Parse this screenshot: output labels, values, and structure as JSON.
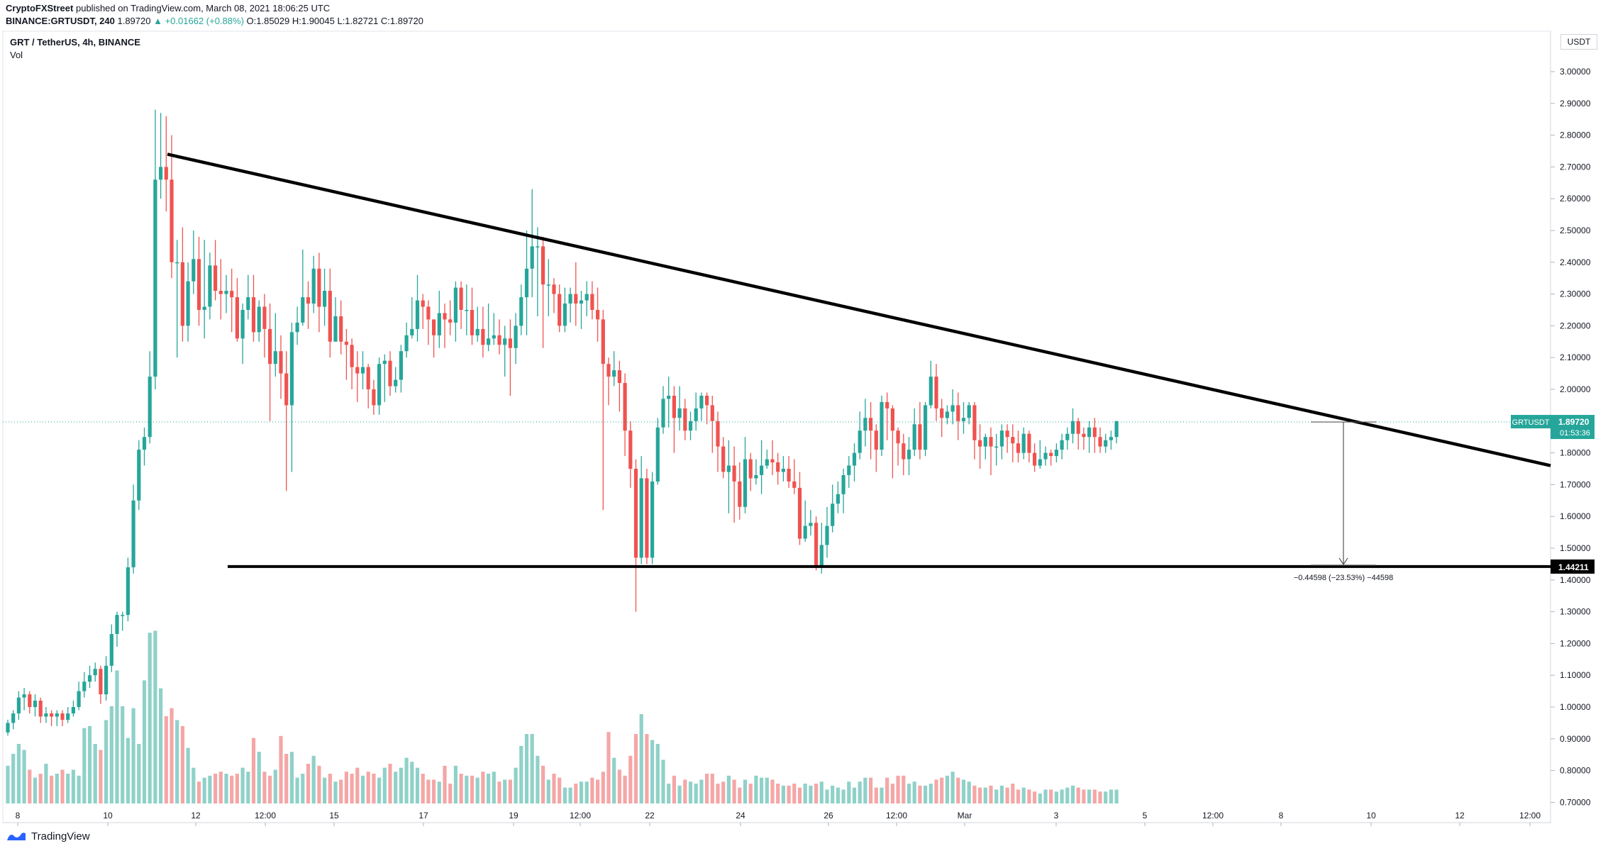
{
  "header": {
    "line1_author": "CryptoFXStreet",
    "line1_rest": "published on TradingView.com, March 08, 2021 18:06:25 UTC",
    "line2_symbol": "BINANCE:GRTUSDT, 240",
    "line2_price": "1.89720",
    "line2_change": "▲ +0.01662 (+0.88%)",
    "line2_ohlc": "O:1.85029 H:1.90045 L:1.82721 C:1.89720"
  },
  "legend": {
    "title": "GRT / TetherUS, 4h, BINANCE",
    "volume": "Vol"
  },
  "footer": {
    "brand": "TradingView"
  },
  "colors": {
    "up": "#26a69a",
    "down": "#ef5350",
    "up_volume": "#8fd1c9",
    "down_volume": "#f5a6a6",
    "trendline": "#000000",
    "price_label_bg": "#26a69a"
  },
  "chart_data": {
    "type": "candlestick",
    "symbol": "GRTUSDT",
    "currency": "USDT",
    "y_ticks": [
      "3.00000",
      "2.90000",
      "2.80000",
      "2.70000",
      "2.60000",
      "2.50000",
      "2.40000",
      "2.30000",
      "2.20000",
      "2.10000",
      "2.00000",
      "1.90000",
      "1.80000",
      "1.70000",
      "1.60000",
      "1.50000",
      "1.40000",
      "1.30000",
      "1.20000",
      "1.10000",
      "1.00000",
      "0.90000",
      "0.80000",
      "0.70000"
    ],
    "y_range": [
      0.66,
      3.06
    ],
    "x_ticks": [
      "8",
      "10",
      "12",
      "12:00",
      "15",
      "17",
      "19",
      "12:00",
      "22",
      "24",
      "26",
      "12:00",
      "Mar",
      "3",
      "5",
      "12:00",
      "8",
      "10",
      "12",
      "12:00"
    ],
    "last_price": {
      "label": "GRTUSDT",
      "value": "1.89720",
      "countdown": "01:53:36"
    },
    "support_label": "1.44211",
    "measurement": "−0.44598 (−23.53%) −44598",
    "descending_trendline": {
      "from_price": 2.74,
      "to_price": 1.76
    },
    "horizontal_support": 1.44211,
    "candles": [
      [
        0.92,
        0.95,
        0.96,
        0.91
      ],
      [
        0.95,
        0.98,
        0.99,
        0.93
      ],
      [
        0.98,
        1.03,
        1.05,
        0.96
      ],
      [
        1.03,
        1.04,
        1.06,
        0.99
      ],
      [
        1.04,
        1.0,
        1.05,
        0.98
      ],
      [
        1.0,
        1.02,
        1.04,
        0.97
      ],
      [
        1.02,
        0.97,
        1.03,
        0.95
      ],
      [
        0.97,
        0.98,
        1.0,
        0.95
      ],
      [
        0.98,
        0.97,
        0.99,
        0.94
      ],
      [
        0.97,
        0.98,
        0.99,
        0.94
      ],
      [
        0.98,
        0.96,
        0.99,
        0.94
      ],
      [
        0.96,
        0.98,
        1.0,
        0.95
      ],
      [
        0.98,
        1.0,
        1.02,
        0.97
      ],
      [
        1.0,
        1.05,
        1.08,
        0.99
      ],
      [
        1.05,
        1.08,
        1.11,
        1.03
      ],
      [
        1.08,
        1.1,
        1.13,
        1.06
      ],
      [
        1.1,
        1.12,
        1.14,
        1.08
      ],
      [
        1.12,
        1.04,
        1.13,
        1.01
      ],
      [
        1.04,
        1.13,
        1.16,
        1.02
      ],
      [
        1.13,
        1.23,
        1.26,
        1.11
      ],
      [
        1.23,
        1.29,
        1.3,
        1.19
      ],
      [
        1.29,
        1.29,
        1.3,
        1.24
      ],
      [
        1.29,
        1.44,
        1.47,
        1.27
      ],
      [
        1.44,
        1.65,
        1.7,
        1.42
      ],
      [
        1.65,
        1.81,
        1.84,
        1.62
      ],
      [
        1.81,
        1.85,
        1.88,
        1.76
      ],
      [
        1.85,
        2.04,
        2.12,
        1.83
      ],
      [
        2.04,
        2.66,
        2.88,
        2.0
      ],
      [
        2.66,
        2.7,
        2.87,
        2.6
      ],
      [
        2.7,
        2.66,
        2.86,
        2.56
      ],
      [
        2.66,
        2.4,
        2.8,
        2.35
      ],
      [
        2.4,
        2.4,
        2.47,
        2.1
      ],
      [
        2.4,
        2.2,
        2.51,
        2.15
      ],
      [
        2.2,
        2.34,
        2.4,
        2.15
      ],
      [
        2.34,
        2.41,
        2.5,
        2.3
      ],
      [
        2.41,
        2.25,
        2.48,
        2.2
      ],
      [
        2.25,
        2.26,
        2.47,
        2.16
      ],
      [
        2.26,
        2.39,
        2.43,
        2.22
      ],
      [
        2.39,
        2.31,
        2.47,
        2.28
      ],
      [
        2.31,
        2.3,
        2.41,
        2.22
      ],
      [
        2.3,
        2.31,
        2.36,
        2.24
      ],
      [
        2.31,
        2.29,
        2.38,
        2.18
      ],
      [
        2.29,
        2.16,
        2.35,
        2.15
      ],
      [
        2.16,
        2.25,
        2.27,
        2.08
      ],
      [
        2.25,
        2.29,
        2.36,
        2.22
      ],
      [
        2.29,
        2.18,
        2.36,
        2.15
      ],
      [
        2.18,
        2.26,
        2.28,
        2.15
      ],
      [
        2.26,
        2.19,
        2.3,
        2.1
      ],
      [
        2.19,
        2.08,
        2.27,
        1.9
      ],
      [
        2.08,
        2.12,
        2.24,
        2.04
      ],
      [
        2.12,
        2.05,
        2.17,
        1.97
      ],
      [
        2.05,
        1.95,
        2.12,
        1.68
      ],
      [
        1.95,
        2.18,
        2.21,
        1.74
      ],
      [
        2.18,
        2.21,
        2.26,
        2.14
      ],
      [
        2.21,
        2.29,
        2.44,
        2.2
      ],
      [
        2.29,
        2.27,
        2.34,
        2.19
      ],
      [
        2.27,
        2.38,
        2.42,
        2.24
      ],
      [
        2.38,
        2.26,
        2.43,
        2.18
      ],
      [
        2.26,
        2.31,
        2.38,
        2.2
      ],
      [
        2.31,
        2.15,
        2.38,
        2.1
      ],
      [
        2.15,
        2.23,
        2.29,
        2.16
      ],
      [
        2.23,
        2.15,
        2.28,
        2.11
      ],
      [
        2.15,
        2.14,
        2.19,
        2.03
      ],
      [
        2.14,
        2.07,
        2.16,
        2.0
      ],
      [
        2.07,
        2.05,
        2.12,
        1.96
      ],
      [
        2.05,
        2.07,
        2.12,
        2.0
      ],
      [
        2.07,
        2.0,
        2.08,
        1.94
      ],
      [
        2.0,
        1.95,
        2.03,
        1.92
      ],
      [
        1.95,
        2.08,
        2.1,
        1.92
      ],
      [
        2.08,
        2.09,
        2.11,
        1.96
      ],
      [
        2.09,
        2.01,
        2.12,
        1.98
      ],
      [
        2.01,
        2.03,
        2.07,
        1.99
      ],
      [
        2.03,
        2.12,
        2.14,
        1.99
      ],
      [
        2.12,
        2.17,
        2.21,
        2.1
      ],
      [
        2.17,
        2.19,
        2.29,
        2.16
      ],
      [
        2.19,
        2.28,
        2.36,
        2.15
      ],
      [
        2.28,
        2.26,
        2.3,
        2.19
      ],
      [
        2.26,
        2.22,
        2.28,
        2.14
      ],
      [
        2.22,
        2.17,
        2.22,
        2.1
      ],
      [
        2.17,
        2.24,
        2.31,
        2.13
      ],
      [
        2.24,
        2.22,
        2.27,
        2.13
      ],
      [
        2.22,
        2.21,
        2.28,
        2.17
      ],
      [
        2.21,
        2.32,
        2.34,
        2.15
      ],
      [
        2.32,
        2.25,
        2.34,
        2.19
      ],
      [
        2.25,
        2.25,
        2.33,
        2.17
      ],
      [
        2.25,
        2.17,
        2.32,
        2.14
      ],
      [
        2.17,
        2.19,
        2.26,
        2.15
      ],
      [
        2.19,
        2.14,
        2.26,
        2.1
      ],
      [
        2.14,
        2.16,
        2.27,
        2.12
      ],
      [
        2.16,
        2.17,
        2.24,
        2.14
      ],
      [
        2.17,
        2.14,
        2.22,
        2.11
      ],
      [
        2.14,
        2.16,
        2.2,
        2.04
      ],
      [
        2.16,
        2.13,
        2.22,
        1.98
      ],
      [
        2.13,
        2.2,
        2.24,
        2.08
      ],
      [
        2.2,
        2.29,
        2.33,
        2.17
      ],
      [
        2.29,
        2.38,
        2.5,
        2.17
      ],
      [
        2.38,
        2.45,
        2.63,
        2.29
      ],
      [
        2.45,
        2.45,
        2.51,
        2.23
      ],
      [
        2.45,
        2.33,
        2.48,
        2.13
      ],
      [
        2.33,
        2.33,
        2.41,
        2.23
      ],
      [
        2.33,
        2.3,
        2.35,
        2.24
      ],
      [
        2.3,
        2.2,
        2.33,
        2.18
      ],
      [
        2.2,
        2.27,
        2.32,
        2.18
      ],
      [
        2.27,
        2.3,
        2.32,
        2.21
      ],
      [
        2.3,
        2.27,
        2.4,
        2.2
      ],
      [
        2.27,
        2.28,
        2.31,
        2.19
      ],
      [
        2.28,
        2.3,
        2.34,
        2.23
      ],
      [
        2.3,
        2.25,
        2.34,
        2.22
      ],
      [
        2.25,
        2.22,
        2.32,
        2.15
      ],
      [
        2.22,
        2.08,
        2.25,
        1.62
      ],
      [
        2.08,
        2.04,
        2.1,
        1.95
      ],
      [
        2.04,
        2.06,
        2.12,
        2.01
      ],
      [
        2.06,
        2.02,
        2.09,
        1.93
      ],
      [
        2.02,
        1.87,
        2.05,
        1.79
      ],
      [
        1.87,
        1.75,
        1.9,
        1.69
      ],
      [
        1.75,
        1.47,
        1.78,
        1.3
      ],
      [
        1.47,
        1.72,
        1.79,
        1.45
      ],
      [
        1.72,
        1.47,
        1.75,
        1.45
      ],
      [
        1.47,
        1.71,
        1.74,
        1.45
      ],
      [
        1.71,
        1.88,
        1.91,
        1.7
      ],
      [
        1.88,
        1.97,
        2.01,
        1.86
      ],
      [
        1.97,
        1.98,
        2.04,
        1.88
      ],
      [
        1.98,
        1.91,
        2.01,
        1.8
      ],
      [
        1.91,
        1.94,
        2.01,
        1.87
      ],
      [
        1.94,
        1.87,
        1.97,
        1.84
      ],
      [
        1.87,
        1.9,
        1.93,
        1.84
      ],
      [
        1.9,
        1.94,
        1.99,
        1.87
      ],
      [
        1.94,
        1.98,
        1.99,
        1.9
      ],
      [
        1.98,
        1.95,
        1.99,
        1.89
      ],
      [
        1.95,
        1.9,
        1.98,
        1.8
      ],
      [
        1.9,
        1.82,
        1.93,
        1.74
      ],
      [
        1.82,
        1.74,
        1.85,
        1.72
      ],
      [
        1.74,
        1.76,
        1.84,
        1.61
      ],
      [
        1.76,
        1.71,
        1.82,
        1.58
      ],
      [
        1.71,
        1.63,
        1.77,
        1.59
      ],
      [
        1.63,
        1.78,
        1.85,
        1.61
      ],
      [
        1.78,
        1.72,
        1.8,
        1.68
      ],
      [
        1.72,
        1.73,
        1.78,
        1.7
      ],
      [
        1.73,
        1.76,
        1.84,
        1.67
      ],
      [
        1.76,
        1.78,
        1.81,
        1.75
      ],
      [
        1.78,
        1.77,
        1.84,
        1.73
      ],
      [
        1.77,
        1.74,
        1.8,
        1.7
      ],
      [
        1.74,
        1.75,
        1.79,
        1.71
      ],
      [
        1.75,
        1.71,
        1.79,
        1.69
      ],
      [
        1.71,
        1.69,
        1.78,
        1.67
      ],
      [
        1.69,
        1.53,
        1.74,
        1.51
      ],
      [
        1.53,
        1.57,
        1.65,
        1.52
      ],
      [
        1.57,
        1.58,
        1.62,
        1.54
      ],
      [
        1.58,
        1.44,
        1.6,
        1.43
      ],
      [
        1.44,
        1.51,
        1.58,
        1.42
      ],
      [
        1.51,
        1.57,
        1.63,
        1.47
      ],
      [
        1.57,
        1.64,
        1.7,
        1.55
      ],
      [
        1.64,
        1.67,
        1.71,
        1.61
      ],
      [
        1.67,
        1.73,
        1.75,
        1.61
      ],
      [
        1.73,
        1.76,
        1.79,
        1.69
      ],
      [
        1.76,
        1.8,
        1.83,
        1.71
      ],
      [
        1.8,
        1.87,
        1.93,
        1.78
      ],
      [
        1.87,
        1.91,
        1.97,
        1.82
      ],
      [
        1.91,
        1.87,
        1.96,
        1.78
      ],
      [
        1.87,
        1.81,
        1.89,
        1.74
      ],
      [
        1.81,
        1.96,
        1.98,
        1.79
      ],
      [
        1.96,
        1.94,
        1.99,
        1.84
      ],
      [
        1.94,
        1.87,
        1.95,
        1.72
      ],
      [
        1.87,
        1.83,
        1.88,
        1.76
      ],
      [
        1.83,
        1.78,
        1.86,
        1.73
      ],
      [
        1.78,
        1.81,
        1.85,
        1.73
      ],
      [
        1.81,
        1.89,
        1.94,
        1.79
      ],
      [
        1.89,
        1.81,
        1.96,
        1.78
      ],
      [
        1.81,
        1.95,
        1.96,
        1.79
      ],
      [
        1.95,
        2.04,
        2.09,
        1.94
      ],
      [
        2.04,
        1.94,
        2.08,
        1.9
      ],
      [
        1.94,
        1.91,
        1.97,
        1.85
      ],
      [
        1.91,
        1.93,
        1.95,
        1.89
      ],
      [
        1.93,
        1.95,
        2.0,
        1.89
      ],
      [
        1.95,
        1.9,
        1.99,
        1.84
      ],
      [
        1.9,
        1.91,
        1.96,
        1.86
      ],
      [
        1.91,
        1.95,
        1.96,
        1.89
      ],
      [
        1.95,
        1.84,
        1.96,
        1.78
      ],
      [
        1.84,
        1.82,
        1.89,
        1.75
      ],
      [
        1.82,
        1.85,
        1.86,
        1.78
      ],
      [
        1.85,
        1.82,
        1.88,
        1.73
      ],
      [
        1.82,
        1.82,
        1.86,
        1.76
      ],
      [
        1.82,
        1.87,
        1.89,
        1.78
      ],
      [
        1.87,
        1.85,
        1.89,
        1.8
      ],
      [
        1.85,
        1.83,
        1.89,
        1.77
      ],
      [
        1.83,
        1.8,
        1.87,
        1.77
      ],
      [
        1.8,
        1.86,
        1.88,
        1.78
      ],
      [
        1.86,
        1.8,
        1.87,
        1.77
      ],
      [
        1.8,
        1.76,
        1.83,
        1.74
      ],
      [
        1.76,
        1.78,
        1.84,
        1.75
      ],
      [
        1.78,
        1.8,
        1.82,
        1.76
      ],
      [
        1.8,
        1.79,
        1.81,
        1.76
      ],
      [
        1.79,
        1.81,
        1.83,
        1.77
      ],
      [
        1.81,
        1.84,
        1.86,
        1.78
      ],
      [
        1.84,
        1.86,
        1.88,
        1.81
      ],
      [
        1.86,
        1.9,
        1.94,
        1.83
      ],
      [
        1.9,
        1.86,
        1.91,
        1.81
      ],
      [
        1.86,
        1.85,
        1.88,
        1.81
      ],
      [
        1.85,
        1.88,
        1.9,
        1.8
      ],
      [
        1.88,
        1.85,
        1.91,
        1.8
      ],
      [
        1.85,
        1.82,
        1.88,
        1.8
      ],
      [
        1.82,
        1.84,
        1.86,
        1.8
      ],
      [
        1.84,
        1.85,
        1.87,
        1.81
      ],
      [
        1.85,
        1.9,
        1.9,
        1.83
      ]
    ],
    "volume_relative": [
      0.19,
      0.25,
      0.3,
      0.27,
      0.17,
      0.13,
      0.15,
      0.2,
      0.14,
      0.15,
      0.17,
      0.15,
      0.17,
      0.14,
      0.38,
      0.39,
      0.3,
      0.27,
      0.42,
      0.49,
      0.67,
      0.49,
      0.33,
      0.48,
      0.3,
      0.62,
      0.86,
      0.87,
      0.58,
      0.44,
      0.48,
      0.42,
      0.39,
      0.28,
      0.18,
      0.11,
      0.13,
      0.14,
      0.15,
      0.16,
      0.15,
      0.14,
      0.15,
      0.18,
      0.16,
      0.33,
      0.26,
      0.16,
      0.14,
      0.17,
      0.34,
      0.25,
      0.26,
      0.13,
      0.15,
      0.2,
      0.24,
      0.19,
      0.13,
      0.15,
      0.11,
      0.12,
      0.16,
      0.15,
      0.18,
      0.14,
      0.16,
      0.15,
      0.13,
      0.18,
      0.2,
      0.16,
      0.18,
      0.23,
      0.21,
      0.18,
      0.15,
      0.12,
      0.12,
      0.11,
      0.19,
      0.1,
      0.19,
      0.15,
      0.14,
      0.14,
      0.13,
      0.16,
      0.15,
      0.16,
      0.11,
      0.12,
      0.12,
      0.18,
      0.29,
      0.35,
      0.35,
      0.24,
      0.19,
      0.12,
      0.15,
      0.13,
      0.08,
      0.08,
      0.1,
      0.11,
      0.11,
      0.13,
      0.12,
      0.16,
      0.36,
      0.23,
      0.17,
      0.14,
      0.24,
      0.35,
      0.45,
      0.35,
      0.32,
      0.3,
      0.22,
      0.1,
      0.14,
      0.09,
      0.12,
      0.11,
      0.1,
      0.12,
      0.15,
      0.15,
      0.1,
      0.11,
      0.14,
      0.12,
      0.08,
      0.12,
      0.1,
      0.14,
      0.13,
      0.13,
      0.12,
      0.1,
      0.09,
      0.09,
      0.1,
      0.08,
      0.1,
      0.09,
      0.1,
      0.11,
      0.07,
      0.09,
      0.08,
      0.07,
      0.11,
      0.08,
      0.11,
      0.13,
      0.13,
      0.08,
      0.08,
      0.13,
      0.1,
      0.14,
      0.14,
      0.1,
      0.11,
      0.09,
      0.09,
      0.1,
      0.12,
      0.13,
      0.14,
      0.16,
      0.13,
      0.12,
      0.11,
      0.09,
      0.08,
      0.08,
      0.09,
      0.07,
      0.09,
      0.08,
      0.1,
      0.07,
      0.08,
      0.07,
      0.06,
      0.05,
      0.07,
      0.07,
      0.06,
      0.07,
      0.08,
      0.09,
      0.08,
      0.07,
      0.07,
      0.07,
      0.06,
      0.06,
      0.07,
      0.07,
      0.06,
      0.05
    ]
  }
}
